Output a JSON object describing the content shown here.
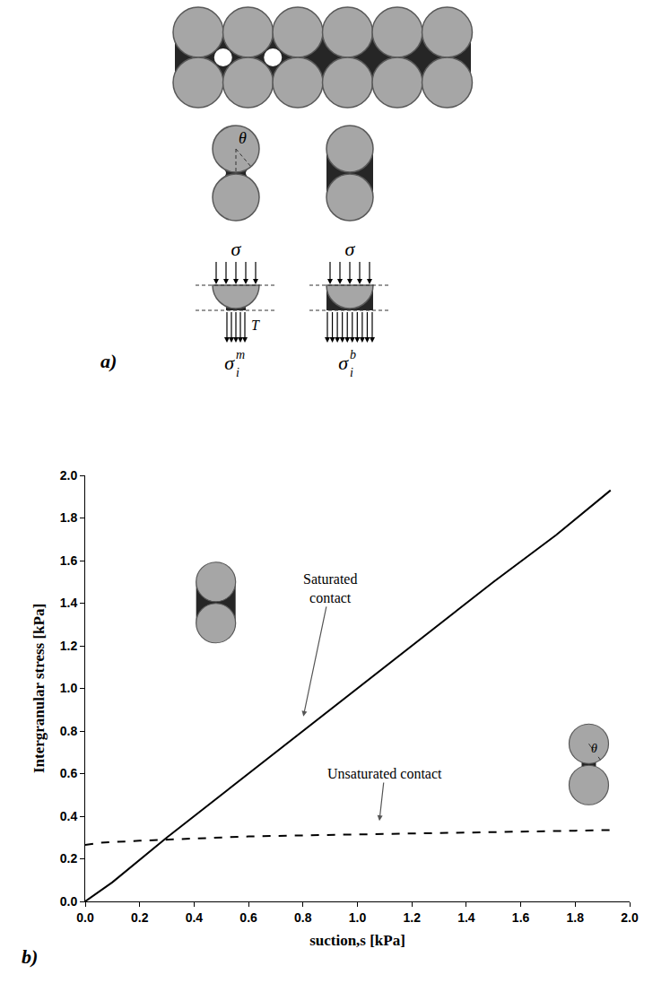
{
  "diagram": {
    "panel_label": "a)",
    "angle_label": "θ",
    "contacts": [
      {
        "load": "σ",
        "force": "T",
        "stress": {
          "symbol": "σ",
          "subscript": "i",
          "superscript": "m"
        }
      },
      {
        "load": "σ",
        "stress": {
          "symbol": "σ",
          "subscript": "i",
          "superscript": "b"
        }
      }
    ]
  },
  "chart_data": {
    "type": "line",
    "panel_label": "b)",
    "x_label": "suction,s [kPa]",
    "y_label": "Intergranular stress [kPa]",
    "xlim": [
      0,
      2
    ],
    "ylim": [
      0,
      2
    ],
    "xticks": [
      {
        "value": 0,
        "label": "0.0"
      },
      0.2,
      0.4,
      0.6,
      0.8,
      {
        "value": 1,
        "label": "1.0"
      },
      1.2,
      1.4,
      1.6,
      1.8,
      {
        "value": 2,
        "label": "2.0"
      }
    ],
    "yticks": [
      {
        "value": 0,
        "label": "0.0"
      },
      0.2,
      0.4,
      0.6,
      0.8,
      {
        "value": 1,
        "label": "1.0"
      },
      1.2,
      1.4,
      1.6,
      1.8,
      {
        "value": 2,
        "label": "2.0"
      }
    ],
    "grid": false,
    "series": [
      {
        "color": "#000000",
        "line_style": "solid",
        "x": [
          0,
          0.1,
          0.3,
          0.5,
          0.8,
          1.0,
          1.3,
          1.5,
          1.73,
          1.93
        ],
        "values": [
          0,
          0.09,
          0.3,
          0.5,
          0.8,
          1.0,
          1.3,
          1.5,
          1.72,
          1.93
        ]
      },
      {
        "color": "#000000",
        "line_style": "dash",
        "x": [
          0,
          0.05,
          0.2,
          0.4,
          0.6,
          0.8,
          1.0,
          1.2,
          1.4,
          1.6,
          1.8,
          1.93
        ],
        "values": [
          0.265,
          0.275,
          0.285,
          0.295,
          0.305,
          0.31,
          0.315,
          0.32,
          0.325,
          0.328,
          0.332,
          0.335
        ]
      }
    ],
    "annotations": [
      {
        "text": "Saturated contact",
        "x": 0.8,
        "y": 0.86,
        "text_x": 0.9,
        "text_y": 1.47
      },
      {
        "text": "Unsaturated contact",
        "x": 1.08,
        "y": 0.37,
        "text_x": 1.1,
        "text_y": 0.6
      },
      {
        "text": "θ",
        "x": 1.87,
        "y": 0.72
      }
    ]
  }
}
